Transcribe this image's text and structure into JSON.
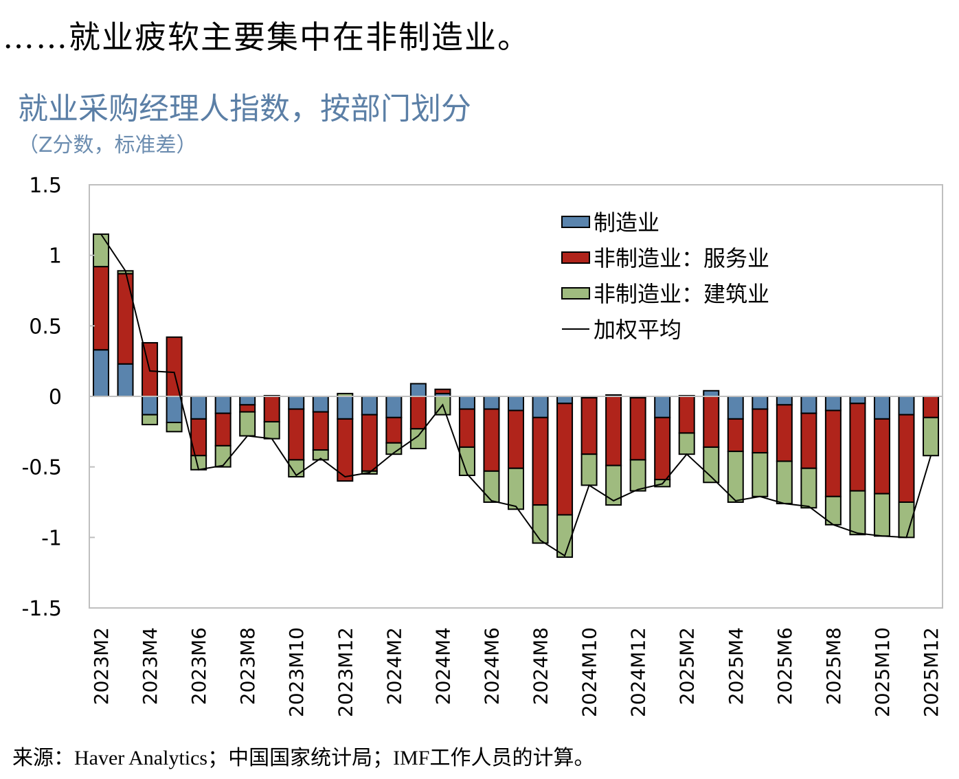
{
  "headline": "……就业疲软主要集中在非制造业。",
  "source": "来源：Haver Analytics；中国国家统计局；IMF工作人员的计算。",
  "colors": {
    "manufacturing": "#5a84ad",
    "services": "#b0241b",
    "construction": "#9fbb7f",
    "line": "#000000",
    "title": "#5b7fa6"
  },
  "chart_data": {
    "type": "bar",
    "stacked": true,
    "title": "就业采购经理人指数，按部门划分",
    "subtitle": "（Z分数，标准差）",
    "xlabel": "",
    "ylabel": "",
    "ylim": [
      -1.5,
      1.5
    ],
    "yticks": [
      1.5,
      1,
      0.5,
      0,
      -0.5,
      -1,
      -1.5
    ],
    "ytick_labels": [
      "1.5",
      "1",
      "0.5",
      "0",
      "-0.5",
      "-1",
      "-1.5"
    ],
    "grid": false,
    "legend_position": "top-right",
    "categories": [
      "2023M2",
      "2023M3",
      "2023M4",
      "2023M5",
      "2023M6",
      "2023M7",
      "2023M8",
      "2023M9",
      "2023M10",
      "2023M11",
      "2023M12",
      "2024M1",
      "2024M2",
      "2024M3",
      "2024M4",
      "2024M5",
      "2024M6",
      "2024M7",
      "2024M8",
      "2024M9",
      "2024M10",
      "2024M11",
      "2024M12",
      "2025M1",
      "2025M2",
      "2025M3",
      "2025M4",
      "2025M5",
      "2025M6",
      "2025M7",
      "2025M8",
      "2025M9",
      "2025M10",
      "2025M11",
      "2025M12"
    ],
    "xtick_labels": [
      "2023M2",
      "2023M4",
      "2023M6",
      "2023M8",
      "2023M10",
      "2023M12",
      "2024M2",
      "2024M4",
      "2024M6",
      "2024M8",
      "2024M10",
      "2024M12",
      "2025M2",
      "2025M4",
      "2025M6",
      "2025M8",
      "2025M10",
      "2025M12"
    ],
    "series": [
      {
        "name": "制造业",
        "kind": "bar",
        "color_key": "manufacturing",
        "values": [
          0.33,
          0.23,
          -0.13,
          -0.185,
          -0.16,
          -0.12,
          -0.06,
          0.005,
          -0.09,
          -0.11,
          -0.16,
          -0.13,
          -0.15,
          0.09,
          0.02,
          -0.09,
          -0.09,
          -0.1,
          -0.15,
          -0.05,
          -0.01,
          0.01,
          -0.01,
          -0.15,
          0.005,
          0.04,
          -0.16,
          -0.09,
          -0.06,
          -0.12,
          -0.1,
          -0.05,
          -0.16,
          -0.13,
          0.0
        ]
      },
      {
        "name": "非制造业：服务业",
        "kind": "bar",
        "color_key": "services",
        "values": [
          0.59,
          0.64,
          0.38,
          0.42,
          -0.26,
          -0.23,
          -0.05,
          -0.18,
          -0.36,
          -0.27,
          -0.44,
          -0.4,
          -0.18,
          -0.23,
          0.03,
          -0.27,
          -0.44,
          -0.41,
          -0.62,
          -0.79,
          -0.4,
          -0.49,
          -0.44,
          -0.44,
          -0.26,
          -0.36,
          -0.23,
          -0.31,
          -0.4,
          -0.39,
          -0.61,
          -0.62,
          -0.53,
          -0.62,
          -0.15
        ]
      },
      {
        "name": "非制造业：建筑业",
        "kind": "bar",
        "color_key": "construction",
        "values": [
          0.23,
          0.02,
          -0.07,
          -0.065,
          -0.1,
          -0.15,
          -0.17,
          -0.12,
          -0.12,
          -0.07,
          0.02,
          -0.02,
          -0.08,
          -0.14,
          -0.13,
          -0.2,
          -0.22,
          -0.29,
          -0.27,
          -0.3,
          -0.22,
          -0.28,
          -0.22,
          -0.05,
          -0.15,
          -0.25,
          -0.36,
          -0.31,
          -0.3,
          -0.28,
          -0.2,
          -0.31,
          -0.3,
          -0.25,
          -0.27
        ]
      },
      {
        "name": "加权平均",
        "kind": "line",
        "color_key": "line",
        "values": [
          1.15,
          0.89,
          0.18,
          0.17,
          -0.52,
          -0.49,
          -0.28,
          -0.3,
          -0.56,
          -0.44,
          -0.57,
          -0.54,
          -0.4,
          -0.28,
          -0.06,
          -0.55,
          -0.74,
          -0.78,
          -1.02,
          -1.13,
          -0.63,
          -0.74,
          -0.66,
          -0.62,
          -0.41,
          -0.57,
          -0.74,
          -0.71,
          -0.76,
          -0.78,
          -0.91,
          -0.97,
          -0.99,
          -1.0,
          -0.42
        ]
      }
    ]
  }
}
